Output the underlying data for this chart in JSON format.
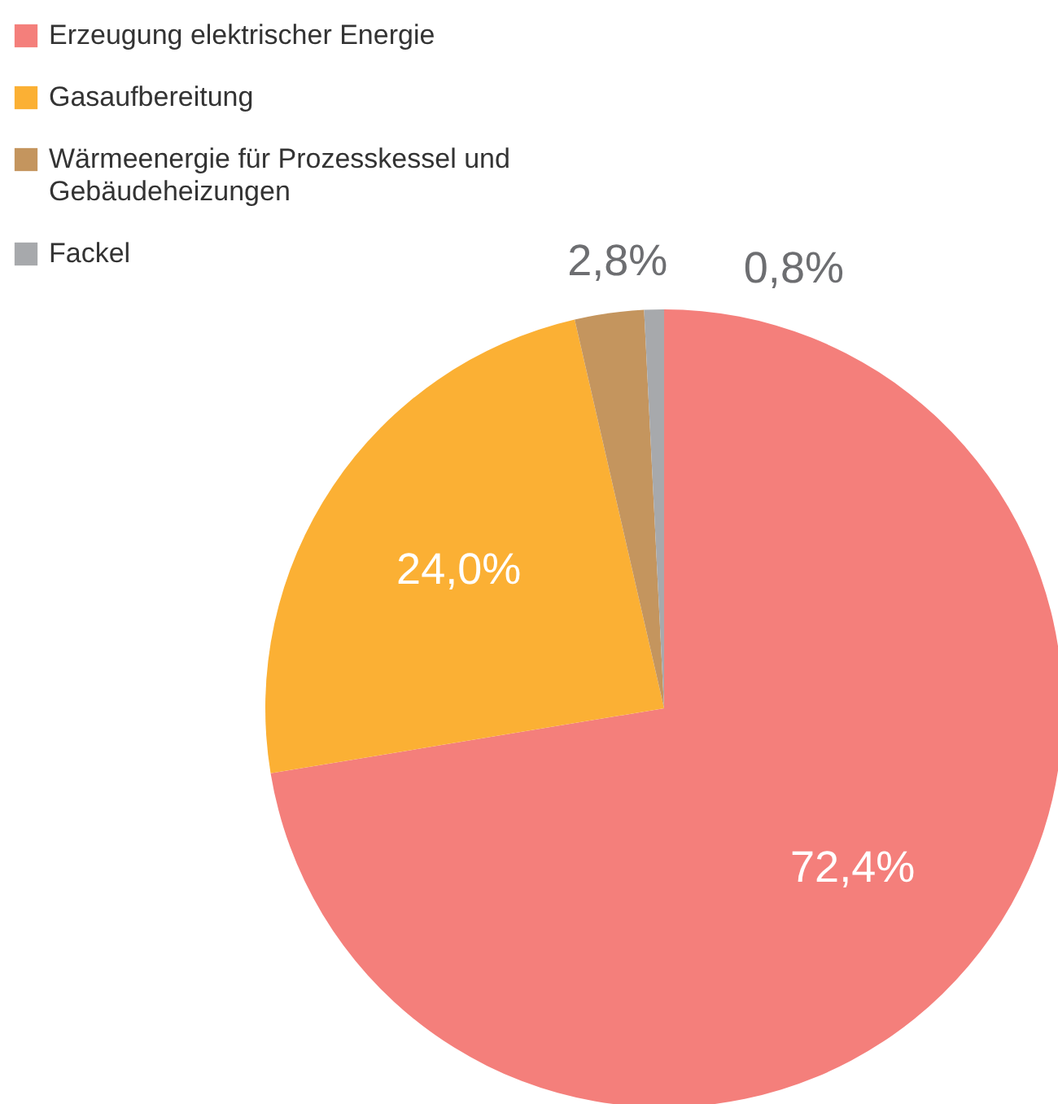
{
  "chart_data": {
    "type": "pie",
    "categories": [
      "Erzeugung elektrischer Energie",
      "Gasaufbereitung",
      "Wärmeenergie für Prozesskessel und Gebäudeheizungen",
      "Fackel"
    ],
    "values": [
      72.4,
      24.0,
      2.8,
      0.8
    ],
    "colors": [
      "#f47f7b",
      "#fbb034",
      "#c4955e",
      "#a7a9ac"
    ],
    "value_labels": [
      "72,4%",
      "24,0%",
      "2,8%",
      "0,8%"
    ],
    "legend": "top left"
  }
}
